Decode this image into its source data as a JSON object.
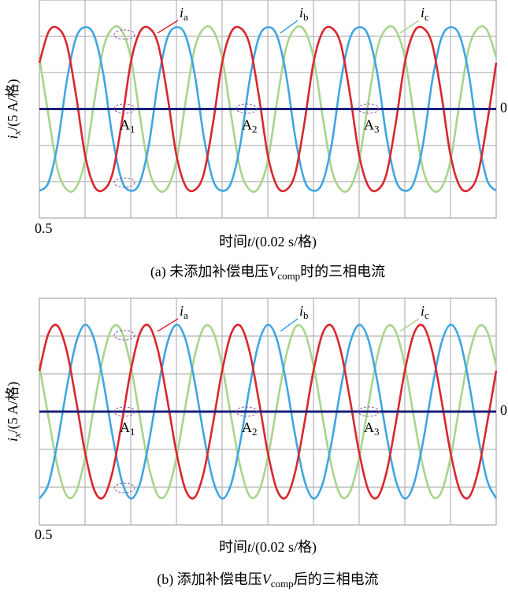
{
  "chart_data": [
    {
      "type": "line",
      "caption": "(a) 未添加补偿电压Vcomp时的三相电流",
      "xlabel": "时间t/(0.02 s/格)",
      "ylabel": "ix/(5 A/格)",
      "x": [
        0.5,
        0.504,
        0.508,
        0.512,
        0.516,
        0.52,
        0.524,
        0.528,
        0.532,
        0.536,
        0.54,
        0.544,
        0.548,
        0.552,
        0.556,
        0.56,
        0.564,
        0.568,
        0.572,
        0.576,
        0.58,
        0.584,
        0.588,
        0.592,
        0.596,
        0.6,
        0.604,
        0.608,
        0.612,
        0.616,
        0.62,
        0.624,
        0.628,
        0.632,
        0.636,
        0.64,
        0.644,
        0.648,
        0.652,
        0.656,
        0.66,
        0.664,
        0.668,
        0.672,
        0.676,
        0.68,
        0.684,
        0.688,
        0.692,
        0.696,
        0.7
      ],
      "xlim": [
        0.5,
        0.7
      ],
      "xticks": [
        0.5
      ],
      "xgrid": [
        0.52,
        0.54,
        0.56,
        0.58,
        0.6,
        0.62,
        0.64,
        0.66,
        0.68
      ],
      "ylim": [
        -3,
        3
      ],
      "yticks": [
        0
      ],
      "ygrid": [
        -2,
        -1,
        1,
        2
      ],
      "series": [
        {
          "name": "ia",
          "color": "#d9262e",
          "values": [
            1.27,
            2.12,
            2.23,
            1.78,
            0.4,
            -1.27,
            -2.12,
            -2.23,
            -1.78,
            -0.4,
            1.27,
            2.12,
            2.23,
            1.78,
            0.4,
            -1.27,
            -2.12,
            -2.23,
            -1.78,
            -0.4,
            1.27,
            2.12,
            2.23,
            1.78,
            0.4,
            -1.27,
            -2.12,
            -2.23,
            -1.78,
            -0.4,
            1.27,
            2.12,
            2.23,
            1.78,
            0.4,
            -1.27,
            -2.12,
            -2.23,
            -1.78,
            -0.4,
            1.27,
            2.12,
            2.23,
            1.78,
            0.4,
            -1.27,
            -2.12,
            -2.23,
            -1.78,
            -0.4,
            1.27
          ]
        },
        {
          "name": "ib",
          "color": "#3fa6e2",
          "values": [
            -2.25,
            -2.02,
            -0.96,
            0.77,
            1.95,
            2.25,
            2.02,
            0.96,
            -0.77,
            -1.95,
            -2.25,
            -2.02,
            -0.96,
            0.77,
            1.95,
            2.25,
            2.02,
            0.96,
            -0.77,
            -1.95,
            -2.25,
            -2.02,
            -0.96,
            0.77,
            1.95,
            2.25,
            2.02,
            0.96,
            -0.77,
            -1.95,
            -2.25,
            -2.02,
            -0.96,
            0.77,
            1.95,
            2.25,
            2.02,
            0.96,
            -0.77,
            -1.95,
            -2.25,
            -2.02,
            -0.96,
            0.77,
            1.95,
            2.25,
            2.02,
            0.96,
            -0.77,
            -1.95,
            -2.25
          ]
        },
        {
          "name": "ic",
          "color": "#a9d48c",
          "values": [
            1.42,
            -0.19,
            -1.67,
            -2.22,
            -2.17,
            -1.42,
            0.19,
            1.67,
            2.22,
            2.17,
            1.42,
            -0.19,
            -1.67,
            -2.22,
            -2.17,
            -1.42,
            0.19,
            1.67,
            2.22,
            2.17,
            1.42,
            -0.19,
            -1.67,
            -2.22,
            -2.17,
            -1.42,
            0.19,
            1.67,
            2.22,
            2.17,
            1.42,
            -0.19,
            -1.67,
            -2.22,
            -2.17,
            -1.42,
            0.19,
            1.67,
            2.22,
            2.17,
            1.42,
            -0.19,
            -1.67,
            -2.22,
            -2.17,
            -1.42,
            0.19,
            1.67,
            2.22,
            2.17,
            1.42
          ]
        }
      ],
      "annotations": [
        "A1",
        "A2",
        "A3"
      ]
    },
    {
      "type": "line",
      "caption": "(b) 添加补偿电压Vcomp后的三相电流",
      "xlabel": "时间t/(0.02 s/格)",
      "ylabel": "ix/(5 A/格)",
      "x": [
        0.5,
        0.504,
        0.508,
        0.512,
        0.516,
        0.52,
        0.524,
        0.528,
        0.532,
        0.536,
        0.54,
        0.544,
        0.548,
        0.552,
        0.556,
        0.56,
        0.564,
        0.568,
        0.572,
        0.576,
        0.58,
        0.584,
        0.588,
        0.592,
        0.596,
        0.6,
        0.604,
        0.608,
        0.612,
        0.616,
        0.62,
        0.624,
        0.628,
        0.632,
        0.636,
        0.64,
        0.644,
        0.648,
        0.652,
        0.656,
        0.66,
        0.664,
        0.668,
        0.672,
        0.676,
        0.68,
        0.684,
        0.688,
        0.692,
        0.696,
        0.7
      ],
      "xlim": [
        0.5,
        0.7
      ],
      "xticks": [
        0.5
      ],
      "xgrid": [
        0.52,
        0.54,
        0.56,
        0.58,
        0.6,
        0.62,
        0.64,
        0.66,
        0.68
      ],
      "ylim": [
        -3,
        3
      ],
      "yticks": [
        0
      ],
      "ygrid": [
        -2,
        -1,
        1,
        2
      ],
      "series": [
        {
          "name": "ia",
          "color": "#d9262e",
          "values": [
            1.08,
            2.07,
            2.27,
            1.6,
            0.32,
            -1.08,
            -2.07,
            -2.27,
            -1.6,
            -0.32,
            1.08,
            2.07,
            2.27,
            1.6,
            0.32,
            -1.08,
            -2.07,
            -2.27,
            -1.6,
            -0.32,
            1.08,
            2.07,
            2.27,
            1.6,
            0.32,
            -1.08,
            -2.07,
            -2.27,
            -1.6,
            -0.32,
            1.08,
            2.07,
            2.27,
            1.6,
            0.32,
            -1.08,
            -2.07,
            -2.27,
            -1.6,
            -0.32,
            1.08,
            2.07,
            2.27,
            1.6,
            0.32,
            -1.08,
            -2.07,
            -2.27,
            -1.6,
            -0.32,
            1.08
          ]
        },
        {
          "name": "ib",
          "color": "#3fa6e2",
          "values": [
            -2.3,
            -1.91,
            -0.79,
            0.63,
            1.81,
            2.3,
            1.91,
            0.79,
            -0.63,
            -1.81,
            -2.3,
            -1.91,
            -0.79,
            0.63,
            1.81,
            2.3,
            1.91,
            0.79,
            -0.63,
            -1.81,
            -2.3,
            -1.91,
            -0.79,
            0.63,
            1.81,
            2.3,
            1.91,
            0.79,
            -0.63,
            -1.81,
            -2.3,
            -1.91,
            -0.79,
            0.63,
            1.81,
            2.3,
            1.91,
            0.79,
            -0.63,
            -1.81,
            -2.3,
            -1.91,
            -0.79,
            0.63,
            1.81,
            2.3,
            1.91,
            0.79,
            -0.63,
            -1.81,
            -2.3
          ]
        },
        {
          "name": "ic",
          "color": "#a9d48c",
          "values": [
            1.22,
            -0.16,
            -1.47,
            -2.23,
            -2.13,
            -1.22,
            0.16,
            1.47,
            2.23,
            2.13,
            1.22,
            -0.16,
            -1.47,
            -2.23,
            -2.13,
            -1.22,
            0.16,
            1.47,
            2.23,
            2.13,
            1.22,
            -0.16,
            -1.47,
            -2.23,
            -2.13,
            -1.22,
            0.16,
            1.47,
            2.23,
            2.13,
            1.22,
            -0.16,
            -1.47,
            -2.23,
            -2.13,
            -1.22,
            0.16,
            1.47,
            2.23,
            2.13,
            1.22,
            -0.16,
            -1.47,
            -2.23,
            -2.13,
            -1.22,
            0.16,
            1.47,
            2.23,
            2.13,
            1.22
          ]
        }
      ],
      "annotations": [
        "A1",
        "A2",
        "A3"
      ]
    }
  ]
}
